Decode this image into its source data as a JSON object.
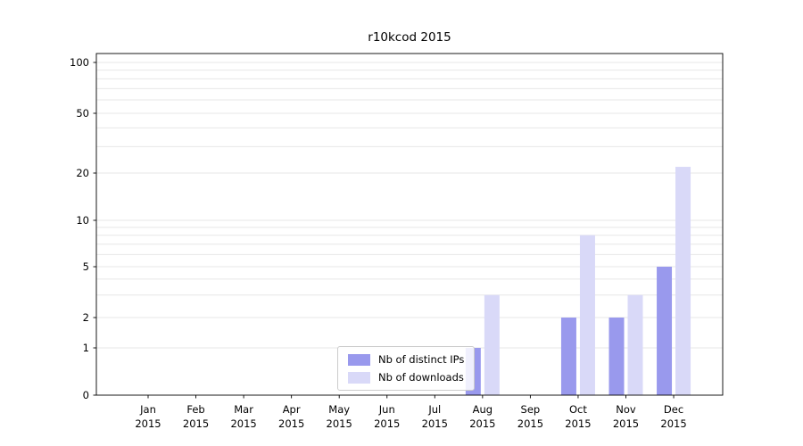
{
  "chart_data": {
    "type": "bar",
    "title": "r10kcod 2015",
    "categories": [
      "Jan 2015",
      "Feb 2015",
      "Mar 2015",
      "Apr 2015",
      "May 2015",
      "Jun 2015",
      "Jul 2015",
      "Aug 2015",
      "Sep 2015",
      "Oct 2015",
      "Nov 2015",
      "Dec 2015"
    ],
    "series": [
      {
        "name": "Nb of distinct IPs",
        "color": "#9999ed",
        "values": [
          0,
          0,
          0,
          0,
          0,
          0,
          0,
          1,
          0,
          2,
          2,
          5
        ]
      },
      {
        "name": "Nb of downloads",
        "color": "#d9d9f8",
        "values": [
          0,
          0,
          0,
          0,
          0,
          0,
          0,
          3,
          0,
          8,
          3,
          22
        ]
      }
    ],
    "y_ticks": [
      0,
      1,
      2,
      5,
      10,
      20,
      50,
      100
    ],
    "ylim": [
      0,
      100
    ],
    "yscale": "symlog",
    "grid": true,
    "grid_values": [
      1,
      2,
      3,
      4,
      5,
      6,
      7,
      8,
      9,
      10,
      20,
      30,
      40,
      50,
      60,
      70,
      80,
      90,
      100
    ],
    "legend_position": "lower center inside",
    "xlabel": "",
    "ylabel": ""
  }
}
